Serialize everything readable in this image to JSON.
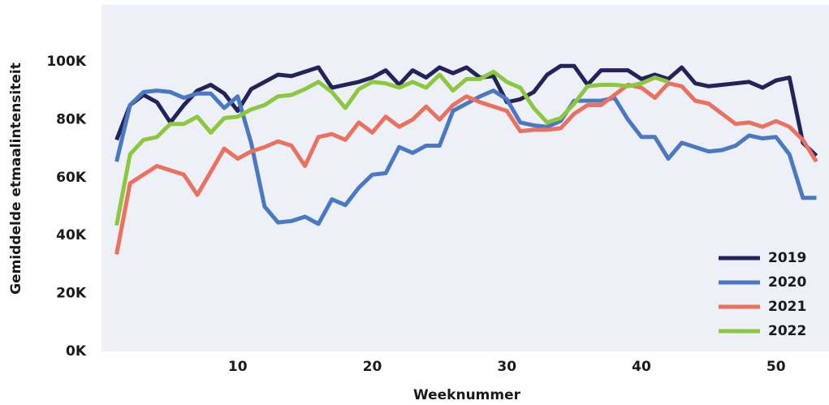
{
  "chart_data": {
    "type": "line",
    "x_label": "Weeknummer",
    "y_label": "Gemiddelde etmaalintensiteit",
    "x": [
      1,
      2,
      3,
      4,
      5,
      6,
      7,
      8,
      9,
      10,
      11,
      12,
      13,
      14,
      15,
      16,
      17,
      18,
      19,
      20,
      21,
      22,
      23,
      24,
      25,
      26,
      27,
      28,
      29,
      30,
      31,
      32,
      33,
      34,
      35,
      36,
      37,
      38,
      39,
      40,
      41,
      42,
      43,
      44,
      45,
      46,
      47,
      48,
      49,
      50,
      51,
      52,
      53
    ],
    "xlim": [
      0,
      54
    ],
    "xticks": [
      10,
      20,
      30,
      40,
      50
    ],
    "ylim": [
      0,
      120000
    ],
    "yticks": [
      {
        "value": 0,
        "label": "0K"
      },
      {
        "value": 20000,
        "label": "20K"
      },
      {
        "value": 40000,
        "label": "40K"
      },
      {
        "value": 60000,
        "label": "60K"
      },
      {
        "value": 80000,
        "label": "80K"
      },
      {
        "value": 100000,
        "label": "100K"
      }
    ],
    "legend": "lower right",
    "series": [
      {
        "name": "2019",
        "color": "#23235b",
        "values": [
          73000,
          85000,
          88500,
          86000,
          79000,
          85000,
          90000,
          92000,
          89000,
          83000,
          90500,
          93000,
          95500,
          95000,
          96500,
          98000,
          91000,
          92000,
          93000,
          94500,
          97000,
          92000,
          97000,
          94500,
          98000,
          96000,
          98000,
          94500,
          95000,
          86000,
          87000,
          89500,
          95500,
          98500,
          98500,
          92000,
          97000,
          97000,
          97000,
          94000,
          95500,
          94000,
          98000,
          92500,
          91500,
          92000,
          92500,
          93000,
          91000,
          93500,
          94500,
          72000,
          67500
        ]
      },
      {
        "name": "2020",
        "color": "#4a78c2",
        "values": [
          65500,
          85000,
          89500,
          90000,
          89500,
          87500,
          89000,
          89000,
          84000,
          88000,
          72000,
          50000,
          44500,
          45000,
          46500,
          44000,
          52500,
          50500,
          56500,
          61000,
          61500,
          70500,
          68500,
          71000,
          71000,
          83000,
          85500,
          88000,
          90000,
          87000,
          79000,
          78000,
          77500,
          79500,
          86500,
          86500,
          86500,
          87500,
          80000,
          74000,
          74000,
          66500,
          72000,
          70500,
          69000,
          69500,
          71000,
          74500,
          73500,
          74000,
          68000,
          53000,
          53000
        ]
      },
      {
        "name": "2021",
        "color": "#ea7060",
        "values": [
          33500,
          58000,
          61000,
          64000,
          62500,
          61000,
          54000,
          62000,
          70000,
          66500,
          69000,
          70500,
          72500,
          71000,
          64000,
          74000,
          75000,
          73000,
          79000,
          75500,
          81000,
          77500,
          80000,
          84500,
          80000,
          85000,
          88000,
          86000,
          84500,
          83000,
          76000,
          76500,
          76500,
          77000,
          82000,
          85000,
          85000,
          88500,
          92000,
          91000,
          87500,
          92500,
          91500,
          86500,
          85500,
          82000,
          78500,
          79000,
          77500,
          79500,
          77500,
          73000,
          65500
        ]
      },
      {
        "name": "2022",
        "color": "#8dc63f",
        "values": [
          43500,
          68000,
          73000,
          74000,
          78500,
          78500,
          81000,
          75500,
          80500,
          81000,
          83500,
          85000,
          88000,
          88500,
          90500,
          93000,
          89500,
          84000,
          90500,
          93000,
          92500,
          91000,
          93000,
          91000,
          95500,
          90000,
          94000,
          94000,
          96500,
          93000,
          91000,
          84000,
          79000,
          80500,
          85500,
          91500,
          92000,
          92000,
          91500,
          92500,
          94500,
          93000,
          null,
          null,
          null,
          null,
          null,
          null,
          null,
          null,
          null,
          null,
          null
        ]
      }
    ]
  }
}
